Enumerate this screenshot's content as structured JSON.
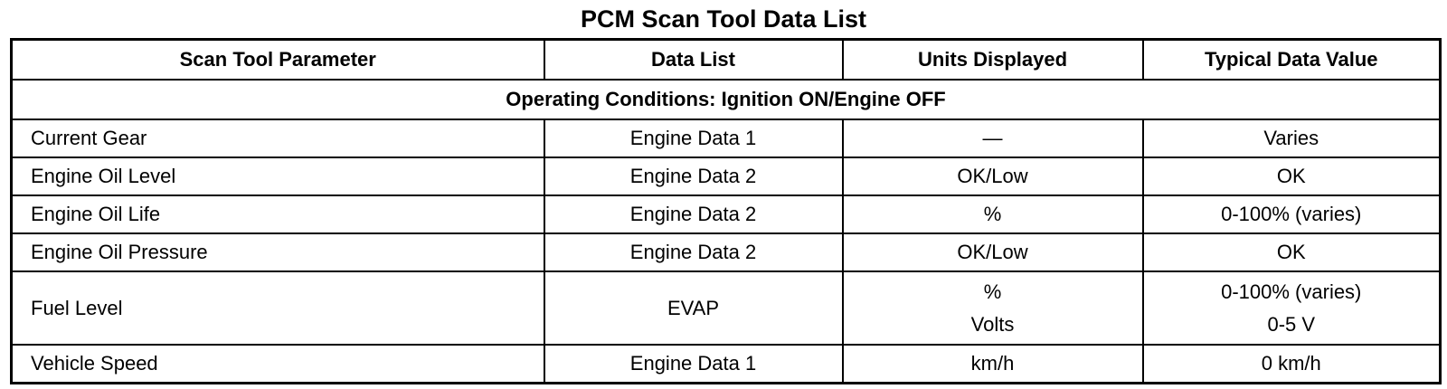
{
  "title": "PCM Scan Tool Data List",
  "headers": [
    "Scan Tool Parameter",
    "Data List",
    "Units Displayed",
    "Typical Data Value"
  ],
  "section": "Operating Conditions: Ignition ON/Engine OFF",
  "rows": [
    {
      "parameter": "Current Gear",
      "data_list": "Engine Data 1",
      "units": [
        "—"
      ],
      "value": [
        "Varies"
      ]
    },
    {
      "parameter": "Engine Oil Level",
      "data_list": "Engine Data 2",
      "units": [
        "OK/Low"
      ],
      "value": [
        "OK"
      ]
    },
    {
      "parameter": "Engine Oil Life",
      "data_list": "Engine Data 2",
      "units": [
        "%"
      ],
      "value": [
        "0-100% (varies)"
      ]
    },
    {
      "parameter": "Engine Oil Pressure",
      "data_list": "Engine Data 2",
      "units": [
        "OK/Low"
      ],
      "value": [
        "OK"
      ]
    },
    {
      "parameter": "Fuel Level",
      "data_list": "EVAP",
      "units": [
        "%",
        "Volts"
      ],
      "value": [
        "0-100% (varies)",
        "0-5 V"
      ]
    },
    {
      "parameter": "Vehicle Speed",
      "data_list": "Engine Data 1",
      "units": [
        "km/h"
      ],
      "value": [
        "0 km/h"
      ]
    }
  ]
}
